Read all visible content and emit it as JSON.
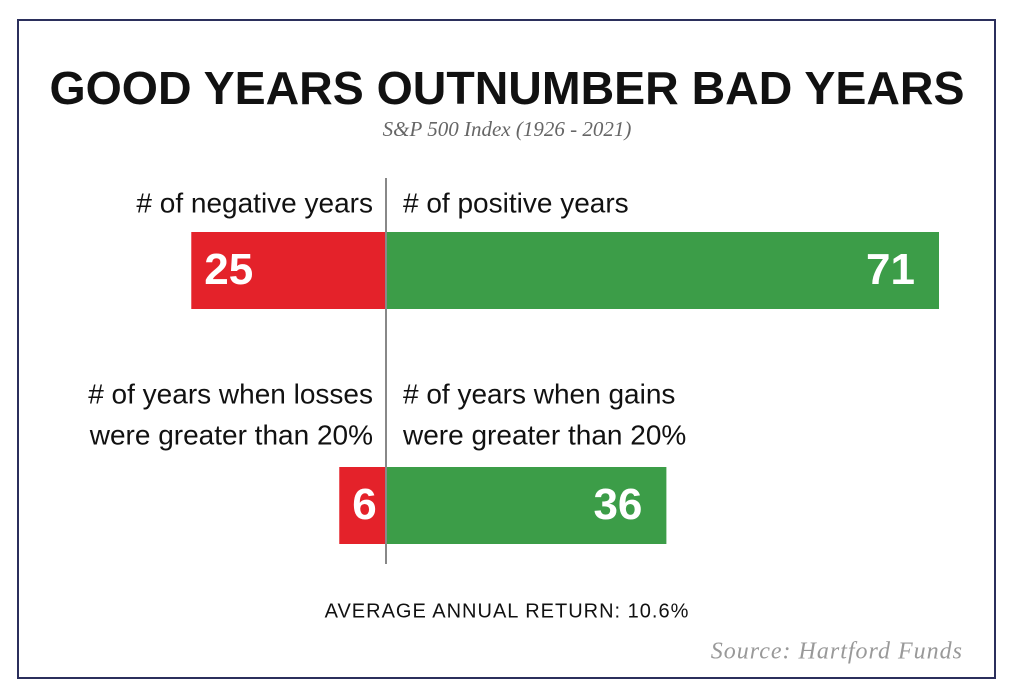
{
  "chart_data": {
    "type": "diverging-bar",
    "title": "GOOD YEARS OUTNUMBER BAD YEARS",
    "subtitle": "S&P 500 Index (1926 - 2021)",
    "negative_color": "#e4222a",
    "positive_color": "#3c9d48",
    "rows": [
      {
        "negative": {
          "label": [
            "# of negative years"
          ],
          "value": 25
        },
        "positive": {
          "label": [
            "# of positive years"
          ],
          "value": 71
        }
      },
      {
        "negative": {
          "label": [
            "# of years when losses",
            "were greater than 20%"
          ],
          "value": 6
        },
        "positive": {
          "label": [
            "# of years when gains",
            "were greater than 20%"
          ],
          "value": 36
        }
      }
    ],
    "note": "AVERAGE ANNUAL RETURN: 10.6%",
    "source": "Source: Hartford Funds"
  }
}
